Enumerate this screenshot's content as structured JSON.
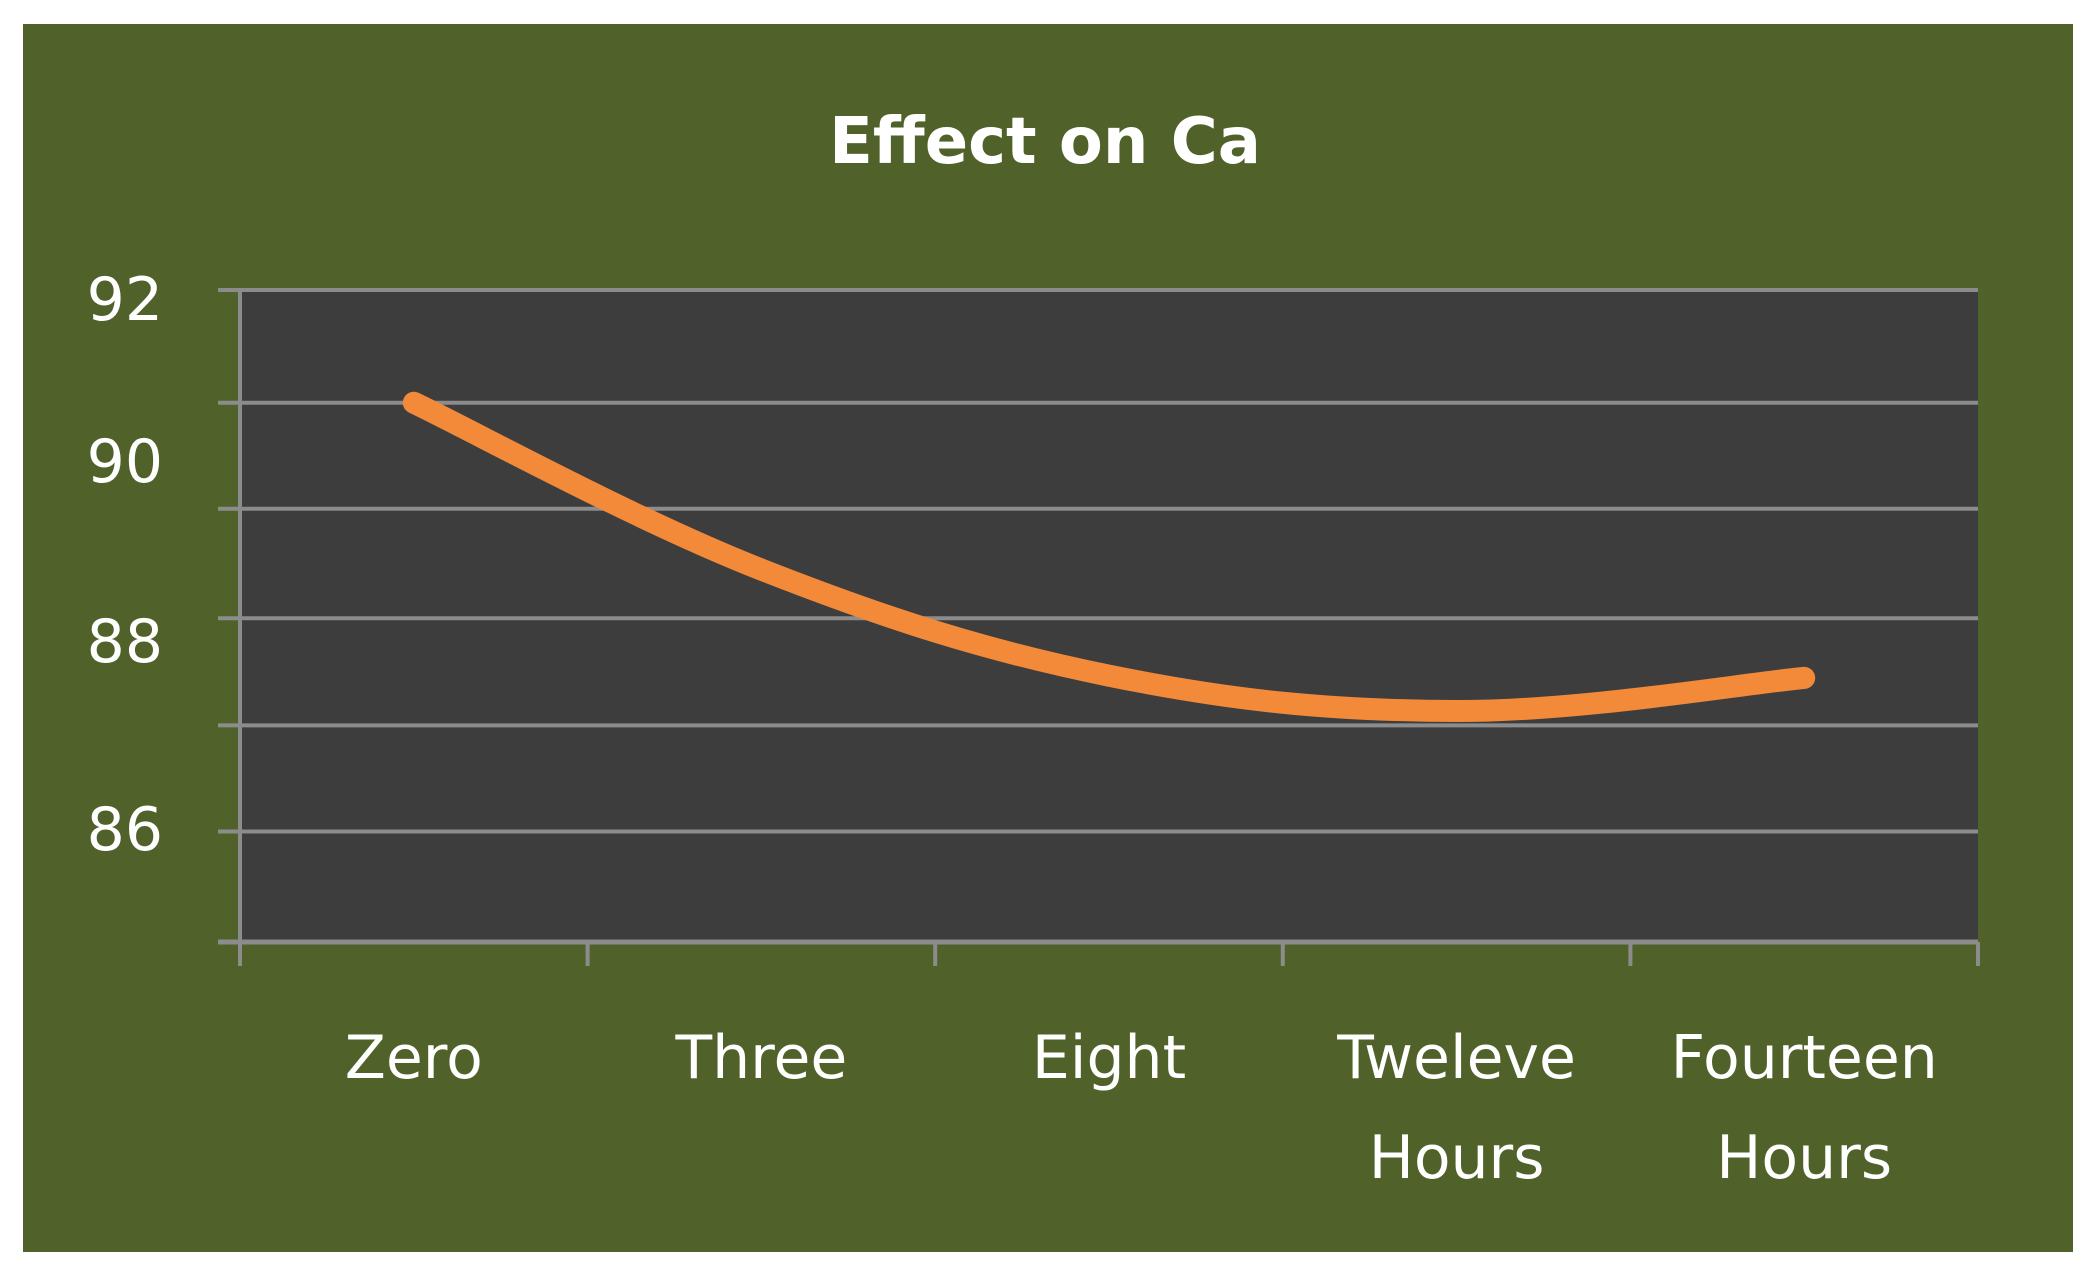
{
  "colors": {
    "background": "#506229",
    "plot_area": "#3d3d3d",
    "gridline": "#8c8c8c",
    "axis": "#8c8c8c",
    "series_line": "#f28a3a",
    "text": "#ffffff"
  },
  "chart_data": {
    "type": "line",
    "title": "Effect on Ca",
    "xlabel": "",
    "ylabel": "",
    "categories": [
      [
        "Zero"
      ],
      [
        "Three"
      ],
      [
        "Eight"
      ],
      [
        "Tweleve",
        "Hours"
      ],
      [
        "Fourteen",
        "Hours"
      ]
    ],
    "y_ticks": [
      {
        "value": 86,
        "label": "86"
      },
      {
        "value": 88,
        "label": "88"
      },
      {
        "value": 90,
        "label": "90"
      },
      {
        "value": 92,
        "label": "92"
      }
    ],
    "ylim": [
      84.98,
      90.88
    ],
    "gridlines": [
      85.98,
      86.94,
      87.91,
      88.9,
      89.86,
      90.88
    ],
    "grid": true,
    "legend": "none",
    "series": [
      {
        "values": [
          89.86,
          88.35,
          87.39,
          87.07,
          87.37
        ]
      }
    ]
  }
}
